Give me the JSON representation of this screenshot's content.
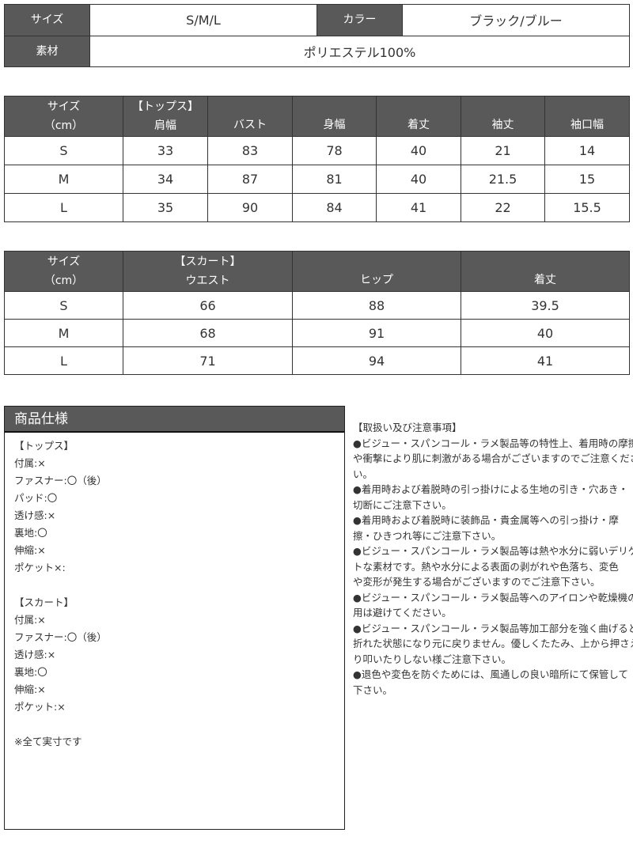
{
  "summary": {
    "size_label": "サイズ",
    "size_value": "S/M/L",
    "color_label": "カラー",
    "color_value": "ブラック/ブルー",
    "material_label": "素材",
    "material_value": "ポリエステル100%"
  },
  "tops": {
    "headers": [
      "サイズ\n（cm）",
      "【トップス】\n肩幅",
      "バスト",
      "身幅",
      "着丈",
      "袖丈",
      "袖口幅"
    ],
    "rows": [
      [
        "S",
        "33",
        "83",
        "78",
        "40",
        "21",
        "14"
      ],
      [
        "M",
        "34",
        "87",
        "81",
        "40",
        "21.5",
        "15"
      ],
      [
        "L",
        "35",
        "90",
        "84",
        "41",
        "22",
        "15.5"
      ]
    ]
  },
  "skirt": {
    "headers": [
      "サイズ\n（cm）",
      "【スカート】\nウエスト",
      "ヒップ",
      "着丈"
    ],
    "rows": [
      [
        "S",
        "66",
        "88",
        "39.5"
      ],
      [
        "M",
        "68",
        "91",
        "40"
      ],
      [
        "L",
        "71",
        "94",
        "41"
      ]
    ]
  },
  "spec": {
    "title": "商品仕様",
    "lines": [
      "【トップス】",
      "付属:×",
      "ファスナー:〇（後）",
      "パッド:〇",
      "透け感:×",
      "裏地:〇",
      "伸縮:×",
      "ポケット×:",
      "",
      "【スカート】",
      "付属:×",
      "ファスナー:〇（後）",
      "透け感:×",
      "裏地:〇",
      "伸縮:×",
      "ポケット:×",
      "",
      "※全て実寸です"
    ]
  },
  "notes": {
    "lines": [
      "【取扱い及び注意事項】",
      "●ビジュー・スパンコール・ラメ製品等の特性上、着用時の摩擦",
      "や衝撃により肌に刺激がある場合がございますのでご注意くださ",
      "い。",
      "●着用時および着脱時の引っ掛けによる生地の引き・穴あき・",
      "切断にご注意下さい。",
      "●着用時および着脱時に装飾品・貴金属等への引っ掛け・摩",
      "擦・ひきつれ等にご注意下さい。",
      "●ビジュー・スパンコール・ラメ製品等は熱や水分に弱いデリケー",
      "トな素材です。熱や水分による表面の剥がれや色落ち、変色",
      "や変形が発生する場合がございますのでご注意下さい。",
      "●ビジュー・スパンコール・ラメ製品等へのアイロンや乾燥機の使",
      "用は避けてください。",
      "●ビジュー・スパンコール・ラメ製品等加工部分を強く曲げると",
      "折れた状態になり元に戻りません。優しくたたみ、上から押さえた",
      "り叩いたりしない様ご注意下さい。",
      "●退色や変色を防ぐためには、風通しの良い暗所にて保管して",
      "下さい。"
    ]
  },
  "colors": {
    "header_bg": "#595959",
    "border": "#333333"
  }
}
